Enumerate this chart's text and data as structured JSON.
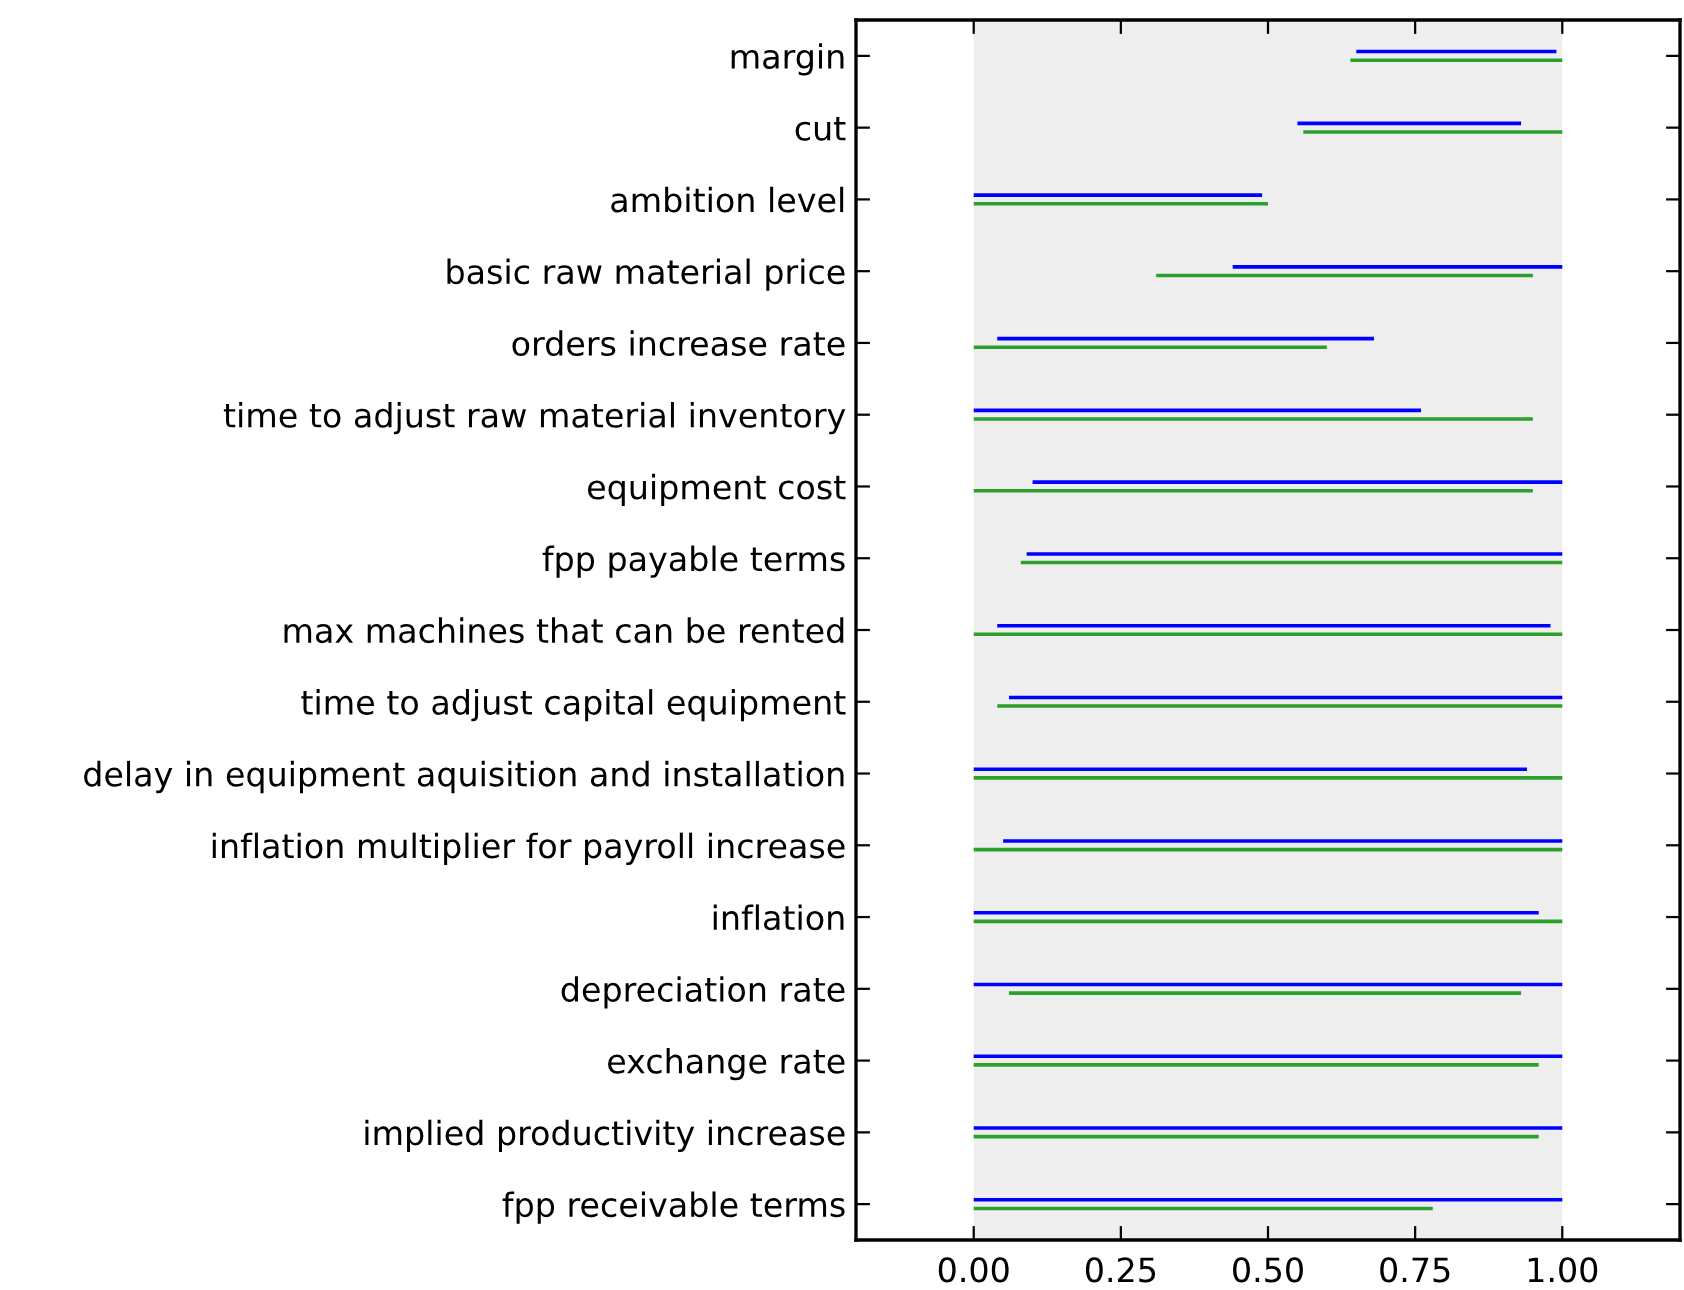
{
  "chart_data": {
    "type": "bar",
    "orientation": "horizontal",
    "categories": [
      "margin",
      "cut",
      "ambition level",
      "basic raw material price",
      "orders increase rate",
      "time to adjust raw material inventory",
      "equipment cost",
      "fpp payable terms",
      "max machines that can be rented",
      "time to adjust capital equipment",
      "delay in equipment aquisition and installation",
      "inflation multiplier for payroll increase",
      "inflation",
      "depreciation rate",
      "exchange rate",
      "implied productivity increase",
      "fpp receivable terms"
    ],
    "series": [
      {
        "color": "#0000ff",
        "base": [
          0.65,
          0.55,
          0,
          0.44,
          0.04,
          0,
          0.1,
          0.09,
          0.04,
          0.06,
          0,
          0.05,
          0,
          0,
          0,
          0,
          0
        ],
        "values": [
          0.34,
          0.38,
          0.49,
          0.56,
          0.64,
          0.76,
          0.9,
          0.91,
          0.94,
          0.94,
          0.94,
          0.95,
          0.96,
          1,
          1,
          1,
          1
        ]
      },
      {
        "color": "#2ca02c",
        "base": [
          0.64,
          0.56,
          0,
          0.31,
          0,
          0,
          0,
          0.08,
          0,
          0.04,
          0,
          0,
          0,
          0.06,
          0,
          0,
          0
        ],
        "values": [
          0.36,
          0.44,
          0.5,
          0.64,
          0.6,
          0.95,
          0.95,
          0.92,
          1,
          0.96,
          1,
          1,
          1,
          0.87,
          0.96,
          0.96,
          0.78
        ]
      }
    ],
    "xlim": [
      -0.2,
      1.2
    ],
    "xticks": [
      {
        "value": 0,
        "label": "0.00"
      },
      {
        "value": 0.25,
        "label": "0.25"
      },
      {
        "value": 0.5,
        "label": "0.50"
      },
      {
        "value": 0.75,
        "label": "0.75"
      },
      {
        "value": 1,
        "label": "1.00"
      }
    ],
    "bands": [
      {
        "axis": "x",
        "from": 0,
        "to": 1,
        "color": "#eeeeee"
      }
    ],
    "grid": false,
    "legend": false
  }
}
